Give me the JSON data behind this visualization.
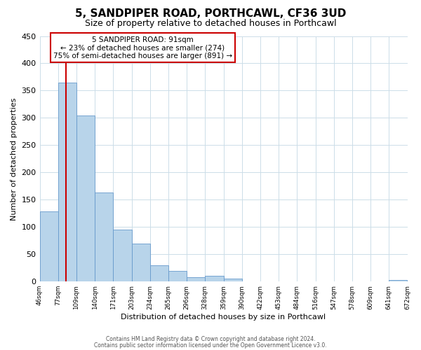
{
  "title": "5, SANDPIPER ROAD, PORTHCAWL, CF36 3UD",
  "subtitle": "Size of property relative to detached houses in Porthcawl",
  "xlabel": "Distribution of detached houses by size in Porthcawl",
  "ylabel": "Number of detached properties",
  "bar_values": [
    128,
    365,
    305,
    163,
    95,
    70,
    30,
    20,
    8,
    10,
    5,
    0,
    0,
    0,
    0,
    0,
    0,
    0,
    0,
    3
  ],
  "bin_labels": [
    "46sqm",
    "77sqm",
    "109sqm",
    "140sqm",
    "171sqm",
    "203sqm",
    "234sqm",
    "265sqm",
    "296sqm",
    "328sqm",
    "359sqm",
    "390sqm",
    "422sqm",
    "453sqm",
    "484sqm",
    "516sqm",
    "547sqm",
    "578sqm",
    "609sqm",
    "641sqm",
    "672sqm"
  ],
  "bar_color": "#b8d4ea",
  "bar_edge_color": "#6699cc",
  "marker_color": "#cc0000",
  "annotation_box_edge": "#cc0000",
  "annotation_line1": "5 SANDPIPER ROAD: 91sqm",
  "annotation_line2": "← 23% of detached houses are smaller (274)",
  "annotation_line3": "75% of semi-detached houses are larger (891) →",
  "ylim": [
    0,
    450
  ],
  "yticks": [
    0,
    50,
    100,
    150,
    200,
    250,
    300,
    350,
    400,
    450
  ],
  "footer_line1": "Contains HM Land Registry data © Crown copyright and database right 2024.",
  "footer_line2": "Contains public sector information licensed under the Open Government Licence v3.0.",
  "background_color": "#ffffff",
  "grid_color": "#ccdde8",
  "marker_sqm": 91
}
